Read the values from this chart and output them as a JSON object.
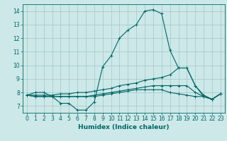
{
  "title": "",
  "xlabel": "Humidex (Indice chaleur)",
  "ylabel": "",
  "background_color": "#cce8e8",
  "grid_color": "#aacccc",
  "line_color": "#006666",
  "xlim": [
    -0.5,
    23.5
  ],
  "ylim": [
    6.5,
    14.5
  ],
  "xticks": [
    0,
    1,
    2,
    3,
    4,
    5,
    6,
    7,
    8,
    9,
    10,
    11,
    12,
    13,
    14,
    15,
    16,
    17,
    18,
    19,
    20,
    21,
    22,
    23
  ],
  "yticks": [
    7,
    8,
    9,
    10,
    11,
    12,
    13,
    14
  ],
  "series": [
    [
      7.8,
      8.0,
      8.0,
      7.7,
      7.2,
      7.2,
      6.7,
      6.7,
      7.3,
      9.9,
      10.7,
      12.0,
      12.6,
      13.0,
      14.0,
      14.1,
      13.8,
      11.1,
      9.8,
      9.8,
      8.5,
      7.8,
      7.5,
      7.9
    ],
    [
      7.8,
      7.8,
      7.8,
      7.8,
      7.9,
      7.9,
      8.0,
      8.0,
      8.1,
      8.2,
      8.3,
      8.5,
      8.6,
      8.7,
      8.9,
      9.0,
      9.1,
      9.3,
      9.8,
      9.8,
      8.5,
      7.7,
      7.5,
      7.9
    ],
    [
      7.8,
      7.7,
      7.7,
      7.7,
      7.7,
      7.7,
      7.7,
      7.7,
      7.8,
      7.9,
      8.0,
      8.1,
      8.2,
      8.3,
      8.4,
      8.5,
      8.5,
      8.5,
      8.5,
      8.5,
      8.0,
      7.7,
      7.5,
      7.9
    ],
    [
      7.8,
      7.7,
      7.7,
      7.7,
      7.7,
      7.7,
      7.7,
      7.7,
      7.7,
      7.8,
      7.9,
      8.0,
      8.1,
      8.2,
      8.2,
      8.2,
      8.2,
      8.0,
      7.9,
      7.8,
      7.7,
      7.7,
      7.5,
      7.9
    ]
  ]
}
